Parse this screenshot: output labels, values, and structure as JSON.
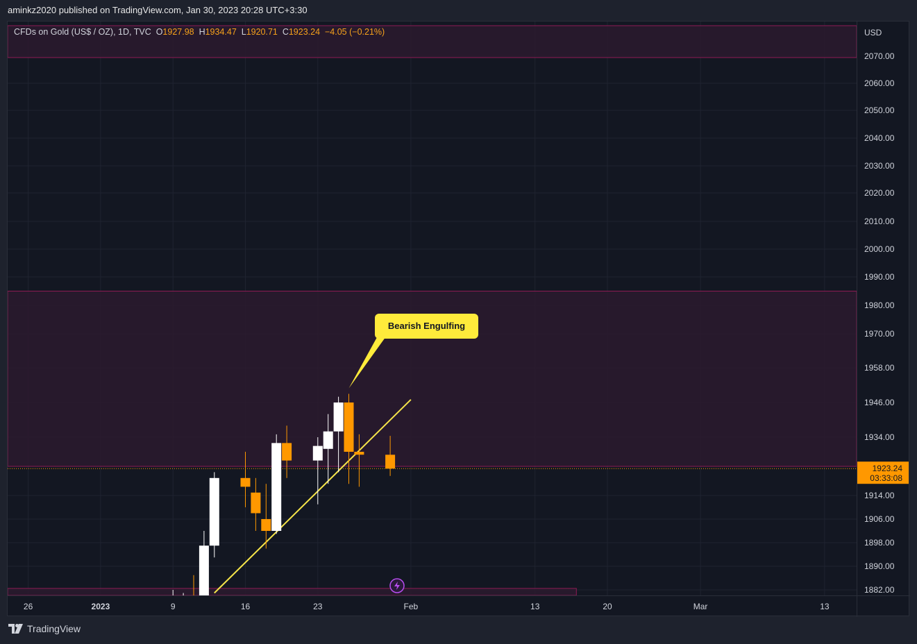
{
  "header": {
    "published_text": "aminkz2020 published on TradingView.com, Jan 30, 2023 20:28 UTC+3:30"
  },
  "legend": {
    "symbol": "CFDs on Gold (US$ / OZ), 1D, TVC",
    "o_label": "O",
    "o_value": "1927.98",
    "h_label": "H",
    "h_value": "1934.47",
    "l_label": "L",
    "l_value": "1920.71",
    "c_label": "C",
    "c_value": "1923.24",
    "change": "−4.05 (−0.21%)"
  },
  "price_axis": {
    "currency": "USD",
    "current_price": "1923.24",
    "countdown": "03:33:08"
  },
  "footer": {
    "brand": "TradingView"
  },
  "colors": {
    "background": "#131722",
    "bull": "#ffffff",
    "bear": "#ff9800",
    "zone_fill": "#2b1a2e",
    "zone_border": "#8e1b54",
    "trendline": "#f6e54a",
    "callout": "#ffeb3b",
    "price_label": "#ff9800"
  },
  "chart_data": {
    "type": "candlestick",
    "title": "CFDs on Gold (US$ / OZ), 1D, TVC",
    "y_ticks": [
      {
        "label": "2070.00"
      },
      {
        "label": "2060.00"
      },
      {
        "label": "2050.00"
      },
      {
        "label": "2040.00"
      },
      {
        "label": "2030.00"
      },
      {
        "label": "2020.00"
      },
      {
        "label": "2010.00"
      },
      {
        "label": "2000.00"
      },
      {
        "label": "1990.00"
      },
      {
        "label": "1980.00"
      },
      {
        "label": "1970.00"
      },
      {
        "label": "1958.00"
      },
      {
        "label": "1946.00"
      },
      {
        "label": "1934.00"
      },
      {
        "label": "1914.00"
      },
      {
        "label": "1906.00"
      },
      {
        "label": "1898.00"
      },
      {
        "label": "1890.00"
      },
      {
        "label": "1882.00"
      }
    ],
    "x_ticks": [
      "26",
      "2023",
      "9",
      "16",
      "23",
      "Feb",
      "13",
      "20",
      "Mar",
      "13"
    ],
    "candles": [
      {
        "date": "2023-01-09",
        "open": 1872,
        "high": 1882,
        "low": 1866,
        "close": 1876
      },
      {
        "date": "2023-01-10",
        "open": 1876,
        "high": 1881,
        "low": 1868,
        "close": 1877
      },
      {
        "date": "2023-01-11",
        "open": 1877,
        "high": 1887,
        "low": 1867,
        "close": 1875
      },
      {
        "date": "2023-01-12",
        "open": 1875,
        "high": 1902,
        "low": 1868,
        "close": 1897
      },
      {
        "date": "2023-01-13",
        "open": 1897,
        "high": 1922,
        "low": 1893,
        "close": 1920
      },
      {
        "date": "2023-01-16",
        "open": 1920,
        "high": 1929,
        "low": 1910,
        "close": 1917
      },
      {
        "date": "2023-01-17",
        "open": 1915,
        "high": 1920,
        "low": 1902,
        "close": 1908
      },
      {
        "date": "2023-01-18",
        "open": 1906,
        "high": 1918,
        "low": 1896,
        "close": 1902
      },
      {
        "date": "2023-01-19",
        "open": 1902,
        "high": 1935,
        "low": 1901,
        "close": 1932
      },
      {
        "date": "2023-01-20",
        "open": 1932,
        "high": 1938,
        "low": 1920,
        "close": 1926
      },
      {
        "date": "2023-01-23",
        "open": 1926,
        "high": 1934,
        "low": 1911,
        "close": 1931
      },
      {
        "date": "2023-01-24",
        "open": 1930,
        "high": 1942,
        "low": 1918,
        "close": 1936
      },
      {
        "date": "2023-01-25",
        "open": 1936,
        "high": 1948,
        "low": 1922,
        "close": 1946
      },
      {
        "date": "2023-01-26",
        "open": 1946,
        "high": 1949,
        "low": 1918,
        "close": 1929
      },
      {
        "date": "2023-01-27",
        "open": 1929,
        "high": 1935,
        "low": 1917,
        "close": 1928
      },
      {
        "date": "2023-01-30",
        "open": 1927.98,
        "high": 1934.47,
        "low": 1920.71,
        "close": 1923.24
      }
    ],
    "current_price": 1923.24,
    "zones": [
      {
        "from": 2069.5,
        "to": 2080.0
      },
      {
        "from": 1924.0,
        "to": 1985.0
      },
      {
        "from": 1879.0,
        "to": 1882.5
      }
    ],
    "trendline": {
      "from": {
        "date": "2023-01-13",
        "price": 1881
      },
      "to": {
        "date": "2023-02-01",
        "price": 1947
      }
    },
    "annotation": {
      "text": "Bearish Engulfing",
      "date": "2023-01-26",
      "price": 1949
    }
  }
}
